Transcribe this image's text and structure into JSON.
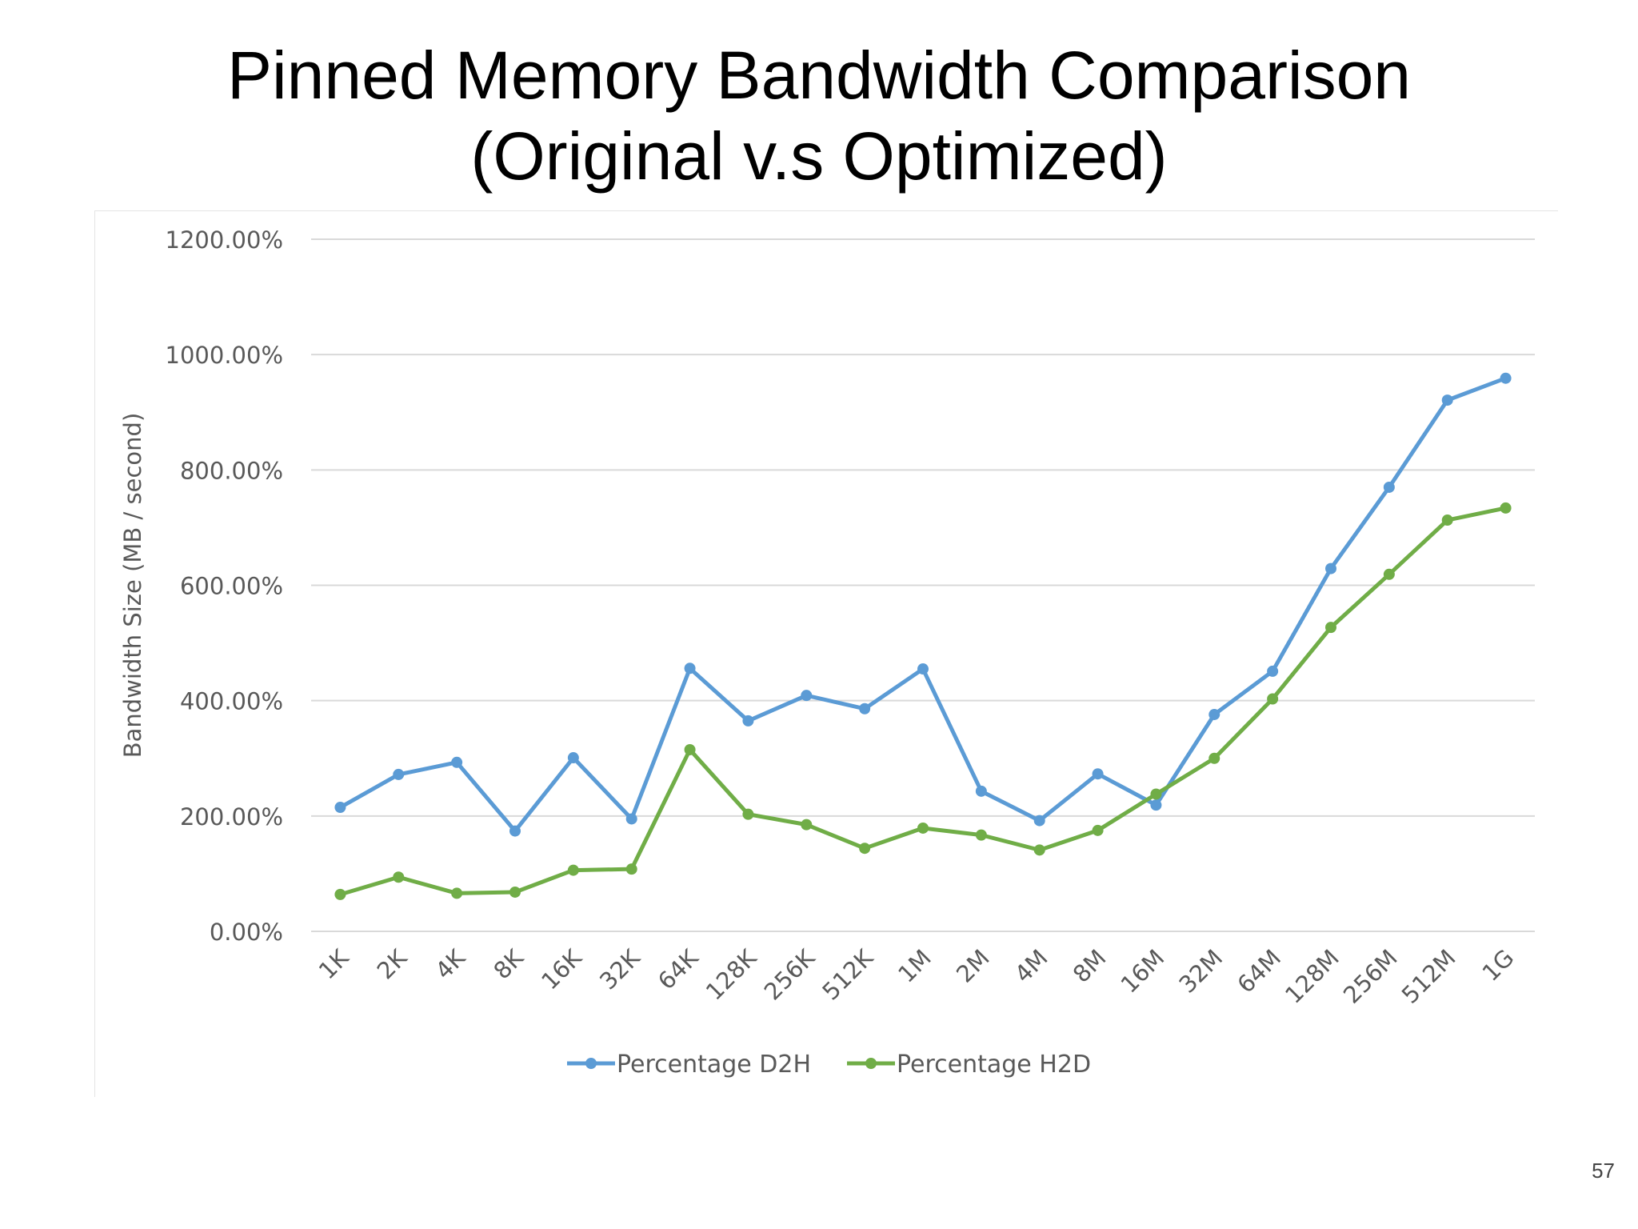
{
  "slide": {
    "title_line_1": "Pinned Memory Bandwidth Comparison",
    "title_line_2": "(Original v.s Optimized)",
    "page_number": "57"
  },
  "chart_data": {
    "type": "line",
    "title": "",
    "xlabel": "",
    "ylabel": "Bandwidth Size (MB / second)",
    "categories": [
      "1K",
      "2K",
      "4K",
      "8K",
      "16K",
      "32K",
      "64K",
      "128K",
      "256K",
      "512K",
      "1M",
      "2M",
      "4M",
      "8M",
      "16M",
      "32M",
      "64M",
      "128M",
      "256M",
      "512M",
      "1G"
    ],
    "ylim": [
      0,
      1200
    ],
    "yticks": [
      0,
      200,
      400,
      600,
      800,
      1000,
      1200
    ],
    "ytick_labels": [
      "0.00%",
      "200.00%",
      "400.00%",
      "600.00%",
      "800.00%",
      "1000.00%",
      "1200.00%"
    ],
    "grid": true,
    "legend_position": "bottom",
    "series": [
      {
        "name": "Percentage D2H",
        "color": "#5b9bd5",
        "values": [
          215,
          272,
          293,
          174,
          301,
          195,
          456,
          365,
          409,
          386,
          455,
          243,
          192,
          273,
          219,
          376,
          451,
          629,
          770,
          921,
          959
        ]
      },
      {
        "name": "Percentage H2D",
        "color": "#70ad47",
        "values": [
          64,
          94,
          66,
          68,
          106,
          108,
          315,
          203,
          185,
          144,
          179,
          167,
          141,
          175,
          238,
          300,
          403,
          527,
          619,
          713,
          734
        ]
      }
    ]
  }
}
